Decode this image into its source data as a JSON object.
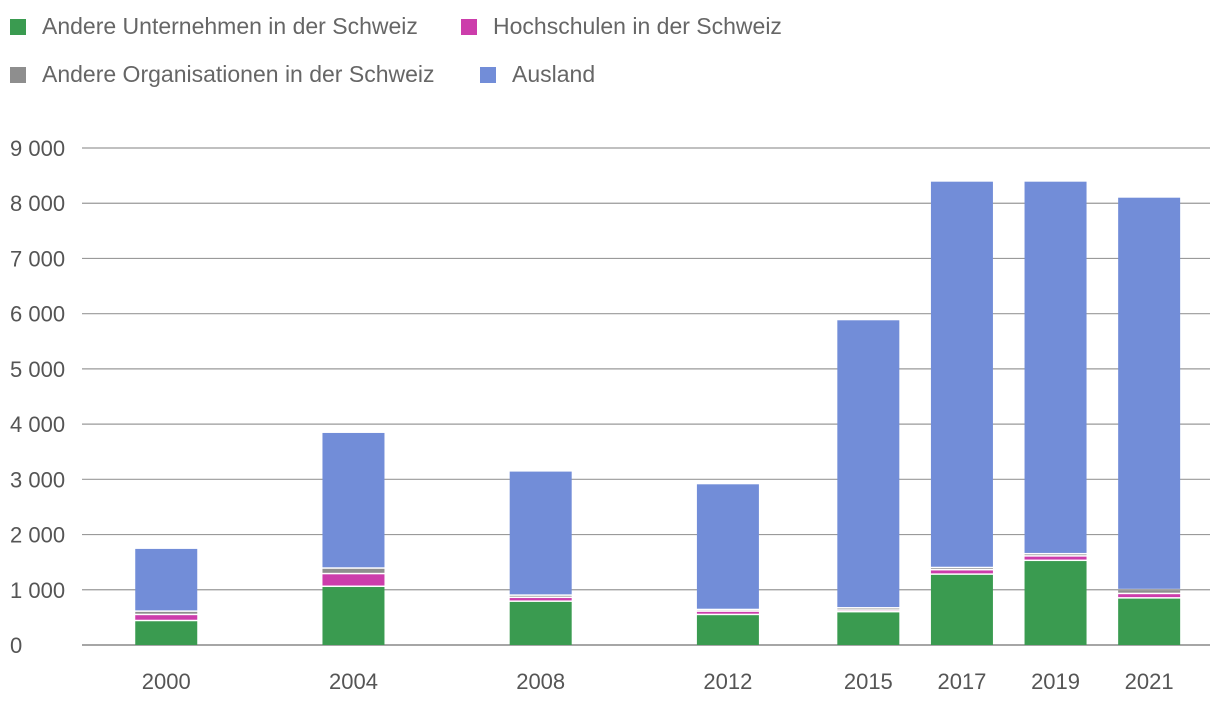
{
  "chart_data": {
    "type": "bar",
    "stacked": true,
    "title": "",
    "xlabel": "",
    "ylabel": "",
    "ylim": [
      0,
      9000
    ],
    "yticks": [
      0,
      1000,
      2000,
      3000,
      4000,
      5000,
      6000,
      7000,
      8000,
      9000
    ],
    "ytick_labels": [
      "0",
      "1 000",
      "2 000",
      "3 000",
      "4 000",
      "5 000",
      "6 000",
      "7 000",
      "8 000",
      "9 000"
    ],
    "categories": [
      "2000",
      "2004",
      "2008",
      "2012",
      "2015",
      "2017",
      "2019",
      "2021"
    ],
    "x": [
      2000,
      2004,
      2008,
      2012,
      2015,
      2017,
      2019,
      2021
    ],
    "legend_position": "top-left",
    "series": [
      {
        "name": "Andere Unternehmen in der Schweiz",
        "color": "#3a9b50",
        "values": [
          430,
          1050,
          780,
          540,
          590,
          1270,
          1520,
          840
        ]
      },
      {
        "name": "Hochschulen in der Schweiz",
        "color": "#cc3dab",
        "values": [
          110,
          230,
          70,
          60,
          30,
          80,
          80,
          80
        ]
      },
      {
        "name": "Andere Organisationen in der Schweiz",
        "color": "#8e8e8e",
        "values": [
          60,
          100,
          40,
          30,
          40,
          40,
          40,
          70
        ]
      },
      {
        "name": "Ausland",
        "color": "#728dd8",
        "values": [
          1140,
          2460,
          2250,
          2280,
          5220,
          7000,
          6750,
          7110
        ]
      }
    ]
  }
}
